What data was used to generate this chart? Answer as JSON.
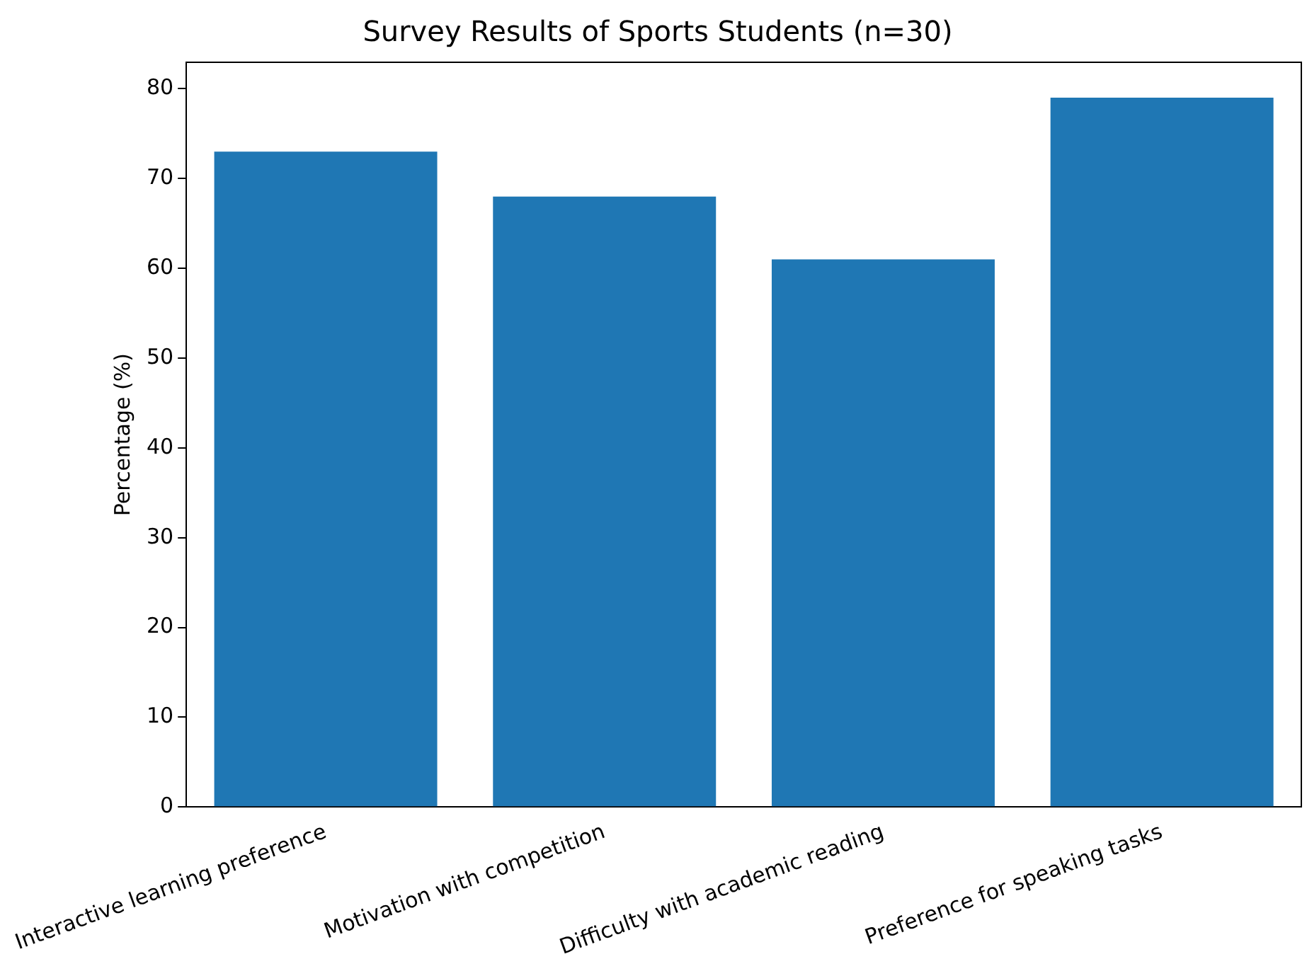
{
  "chart_data": {
    "type": "bar",
    "title": "Survey Results of Sports Students (n=30)",
    "ylabel": "Percentage (%)",
    "categories": [
      "Interactive learning preference",
      "Motivation with competition",
      "Difficulty with academic reading",
      "Preference for speaking tasks"
    ],
    "values": [
      73,
      68,
      61,
      79
    ],
    "color": "#1f77b4",
    "ylim": [
      0,
      82.95
    ],
    "yticks": [
      0,
      10,
      20,
      30,
      40,
      50,
      60,
      70,
      80
    ],
    "grid": false,
    "legend": false
  }
}
